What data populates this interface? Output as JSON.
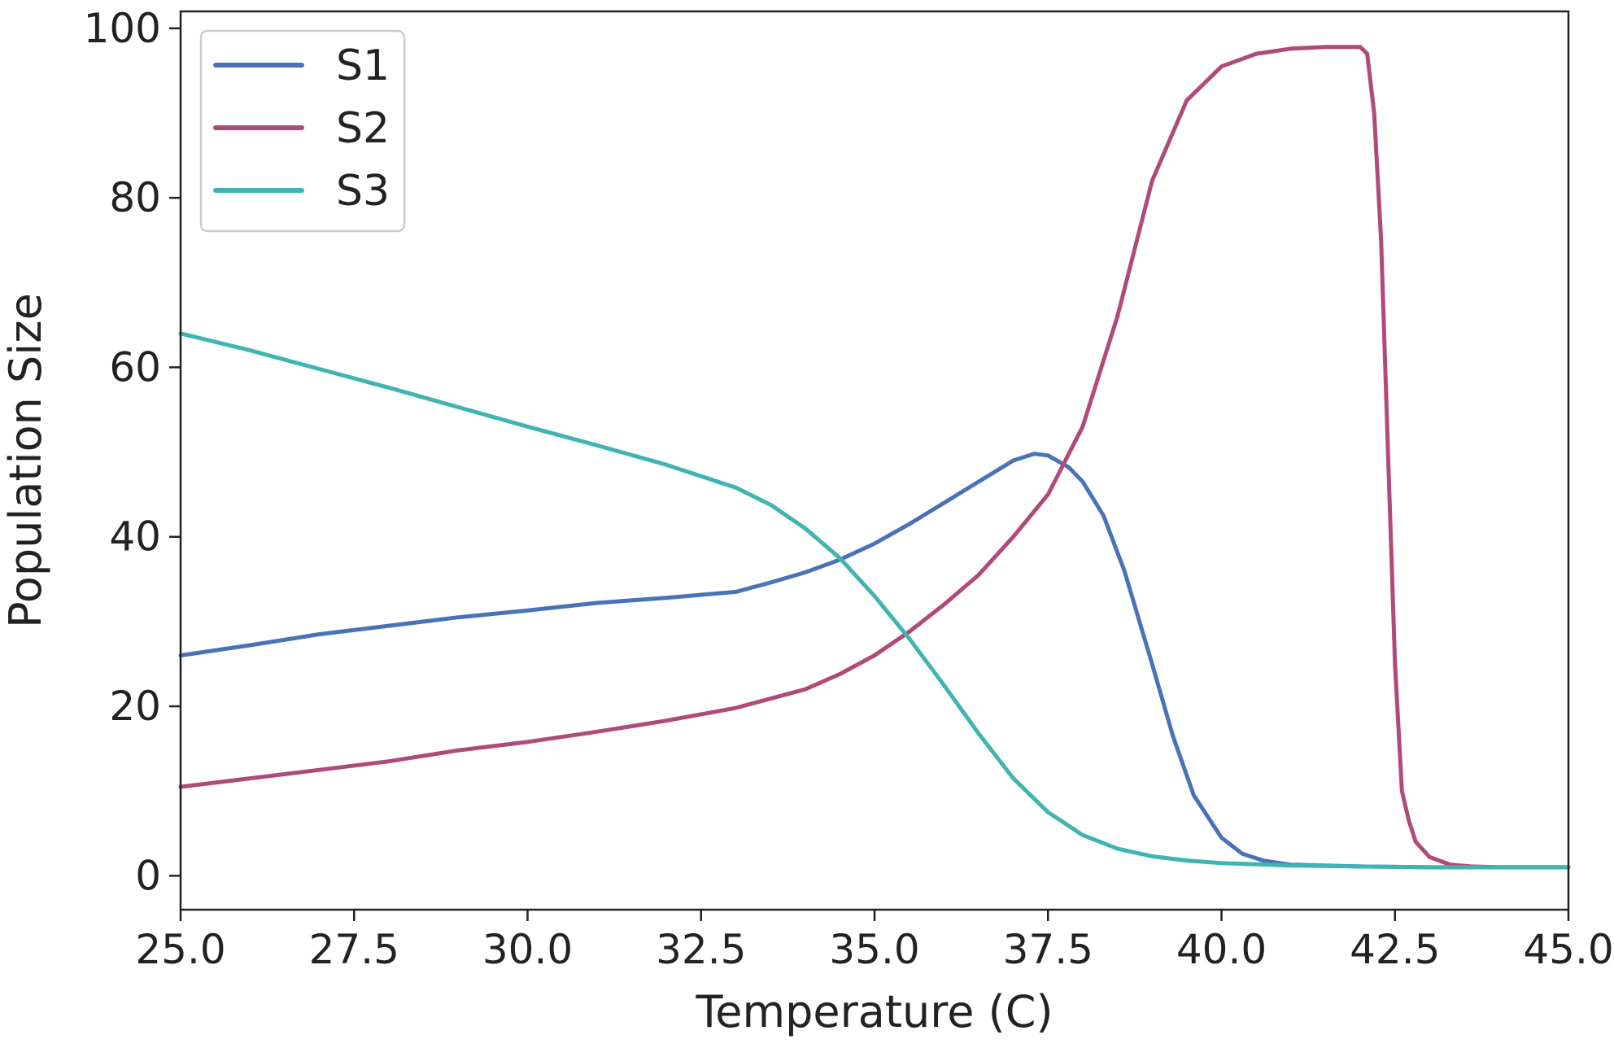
{
  "chart_data": {
    "type": "line",
    "title": "",
    "xlabel": "Temperature (C)",
    "ylabel": "Population Size",
    "xlim": [
      25.0,
      45.0
    ],
    "ylim": [
      -4,
      102
    ],
    "xticks": [
      25.0,
      27.5,
      30.0,
      32.5,
      35.0,
      37.5,
      40.0,
      42.5,
      45.0
    ],
    "xtick_labels": [
      "25.0",
      "27.5",
      "30.0",
      "32.5",
      "35.0",
      "37.5",
      "40.0",
      "42.5",
      "45.0"
    ],
    "yticks": [
      0,
      20,
      40,
      60,
      80,
      100
    ],
    "ytick_labels": [
      "0",
      "20",
      "40",
      "60",
      "80",
      "100"
    ],
    "grid": false,
    "legend": {
      "position": "top-left"
    },
    "series": [
      {
        "name": "S1",
        "color": "#4a72b8",
        "x": [
          25,
          26,
          27,
          28,
          29,
          30,
          31,
          32,
          33,
          33.5,
          34,
          34.5,
          35,
          35.5,
          36,
          36.5,
          37,
          37.3,
          37.5,
          37.8,
          38,
          38.3,
          38.6,
          39,
          39.3,
          39.6,
          40,
          40.3,
          40.6,
          41,
          42,
          43,
          44,
          45
        ],
        "y": [
          26,
          27.2,
          28.5,
          29.5,
          30.5,
          31.3,
          32.2,
          32.8,
          33.5,
          34.6,
          35.8,
          37.3,
          39.2,
          41.5,
          44,
          46.5,
          49,
          49.8,
          49.6,
          48.2,
          46.5,
          42.5,
          36,
          25,
          16.5,
          9.5,
          4.5,
          2.6,
          1.8,
          1.3,
          1.1,
          1.0,
          1.0,
          1.0
        ]
      },
      {
        "name": "S2",
        "color": "#b04a78",
        "x": [
          25,
          26,
          27,
          28,
          29,
          30,
          31,
          32,
          33,
          34,
          34.5,
          35,
          35.5,
          36,
          36.5,
          37,
          37.5,
          38,
          38.5,
          39,
          39.5,
          40,
          40.5,
          41,
          41.5,
          42,
          42.1,
          42.2,
          42.3,
          42.4,
          42.5,
          42.6,
          42.7,
          42.8,
          43,
          43.3,
          43.6,
          44,
          45
        ],
        "y": [
          10.5,
          11.5,
          12.5,
          13.5,
          14.8,
          15.8,
          17.0,
          18.3,
          19.8,
          22,
          23.8,
          26,
          28.8,
          32,
          35.5,
          40,
          45,
          53,
          66,
          82,
          91.5,
          95.5,
          97,
          97.6,
          97.8,
          97.8,
          97,
          90,
          75,
          50,
          25,
          10,
          6.5,
          4,
          2.2,
          1.3,
          1.1,
          1.0,
          1.0
        ]
      },
      {
        "name": "S3",
        "color": "#40b4b0",
        "x": [
          25,
          26,
          27,
          28,
          29,
          30,
          31,
          32,
          33,
          33.5,
          34,
          34.5,
          35,
          35.5,
          36,
          36.5,
          37,
          37.5,
          38,
          38.5,
          39,
          39.5,
          40,
          41,
          42,
          43,
          44,
          45
        ],
        "y": [
          64,
          62,
          59.8,
          57.6,
          55.3,
          53,
          50.8,
          48.5,
          45.8,
          43.8,
          41,
          37.5,
          33,
          28,
          22.5,
          16.8,
          11.5,
          7.5,
          4.8,
          3.2,
          2.3,
          1.8,
          1.5,
          1.2,
          1.1,
          1.0,
          1.0,
          1.0
        ]
      }
    ]
  }
}
